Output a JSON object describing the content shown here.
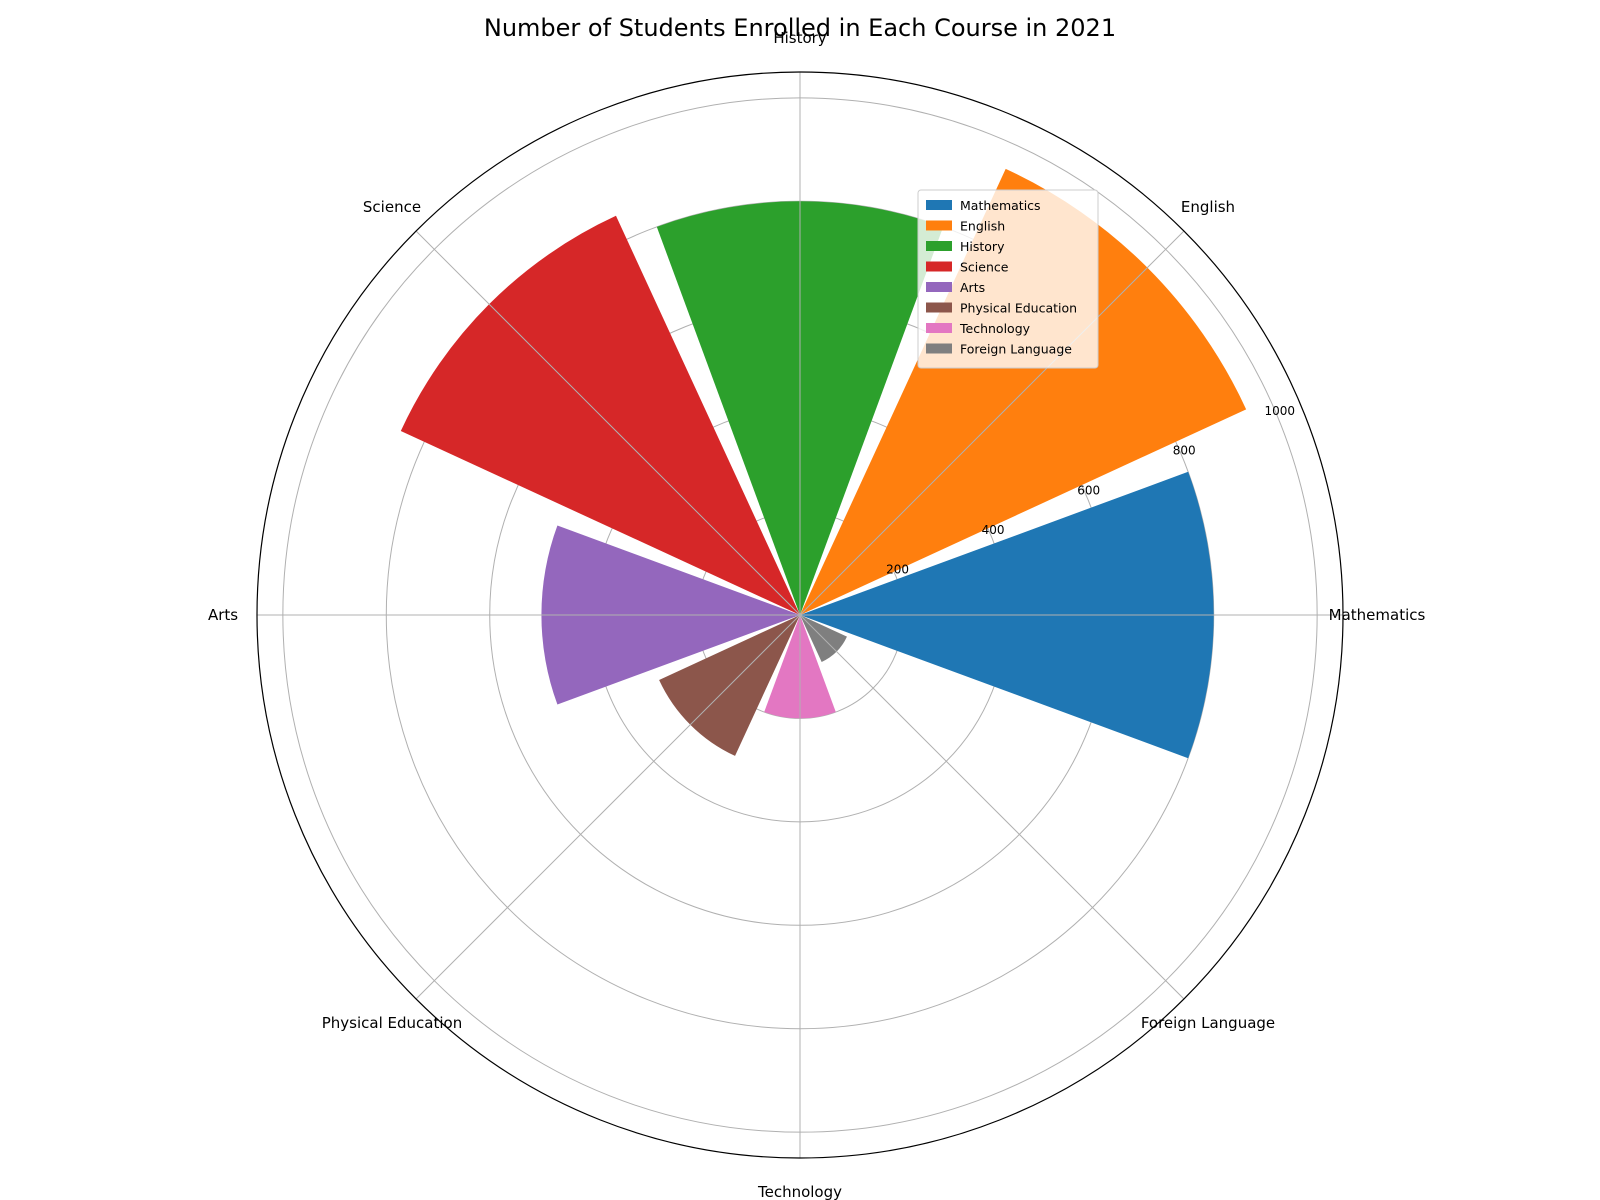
{
  "chart_data": {
    "type": "bar",
    "subtype": "polar",
    "title": "Number of Students Enrolled in Each Course in 2021",
    "categories": [
      "Mathematics",
      "English",
      "History",
      "Science",
      "Arts",
      "Physical Education",
      "Technology",
      "Foreign Language"
    ],
    "values": [
      800,
      950,
      800,
      850,
      500,
      300,
      200,
      100
    ],
    "colors": [
      "#1f77b4",
      "#ff7f0e",
      "#2ca02c",
      "#d62728",
      "#9467bd",
      "#8c564b",
      "#e377c2",
      "#7f7f7f"
    ],
    "radial_ticks": [
      "200",
      "400",
      "600",
      "800",
      "1000"
    ],
    "radial_tick_values": [
      200,
      400,
      600,
      800,
      1000
    ],
    "rlim": [
      0,
      1050
    ],
    "grid": true,
    "legend": {
      "placement": "upper-right",
      "entries": [
        "Mathematics",
        "English",
        "History",
        "Science",
        "Arts",
        "Physical Education",
        "Technology",
        "Foreign Language"
      ]
    }
  }
}
